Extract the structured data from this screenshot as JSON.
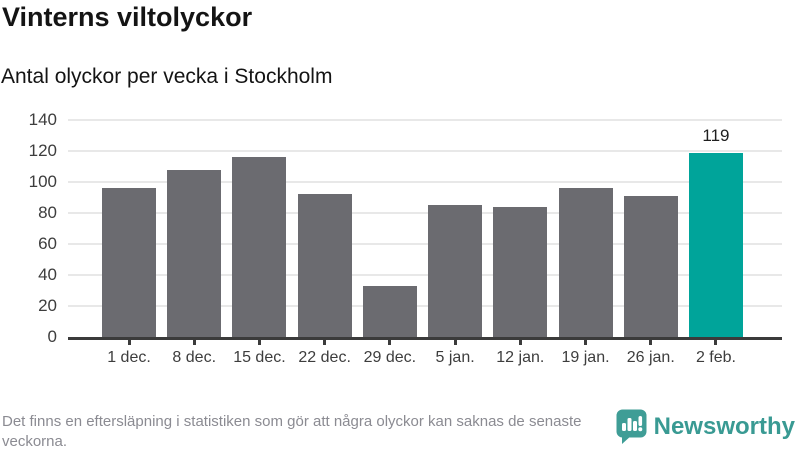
{
  "header": {
    "title": "Vinterns viltolyckor",
    "subtitle": "Antal olyckor per vecka i Stockholm"
  },
  "chart_data": {
    "type": "bar",
    "title": "Vinterns viltolyckor",
    "subtitle": "Antal olyckor per vecka i Stockholm",
    "categories": [
      "1 dec.",
      "8 dec.",
      "15 dec.",
      "22 dec.",
      "29 dec.",
      "5 jan.",
      "12 jan.",
      "19 jan.",
      "26 jan.",
      "2 feb."
    ],
    "values": [
      96,
      108,
      116,
      92,
      33,
      85,
      84,
      96,
      91,
      119
    ],
    "ylim": [
      0,
      140
    ],
    "yticks": [
      0,
      20,
      40,
      60,
      80,
      100,
      120,
      140
    ],
    "grid": true,
    "bar_color": "#6b6b70",
    "highlight_index": 9,
    "highlight_color": "#00a49a",
    "highlight_label": "119",
    "xlabel": "",
    "ylabel": ""
  },
  "footer": {
    "note": "Det finns en eftersläpning i statistiken som gör att några olyckor kan saknas de senaste veckorna.",
    "brand": "Newsworthy",
    "brand_color": "#399a93",
    "logo_icon": "speech-bubble-bar-chart-icon"
  }
}
